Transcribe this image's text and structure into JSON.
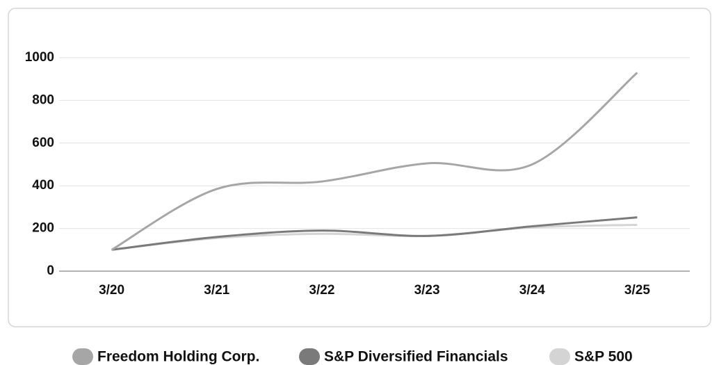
{
  "chart_data": {
    "type": "line",
    "categories": [
      "3/20",
      "3/21",
      "3/22",
      "3/23",
      "3/24",
      "3/25"
    ],
    "series": [
      {
        "name": "Freedom Holding Corp.",
        "color": "#a6a6a6",
        "values": [
          100,
          385,
          420,
          505,
          500,
          930
        ]
      },
      {
        "name": "S&P Diversified Financials",
        "color": "#7a7a7a",
        "values": [
          100,
          160,
          190,
          165,
          210,
          252
        ]
      },
      {
        "name": "S&P 500",
        "color": "#d4d4d4",
        "values": [
          100,
          155,
          175,
          165,
          205,
          217
        ]
      }
    ],
    "ylim": [
      0,
      1000
    ],
    "yticks": [
      0,
      200,
      400,
      600,
      800,
      1000
    ],
    "grid": true
  }
}
